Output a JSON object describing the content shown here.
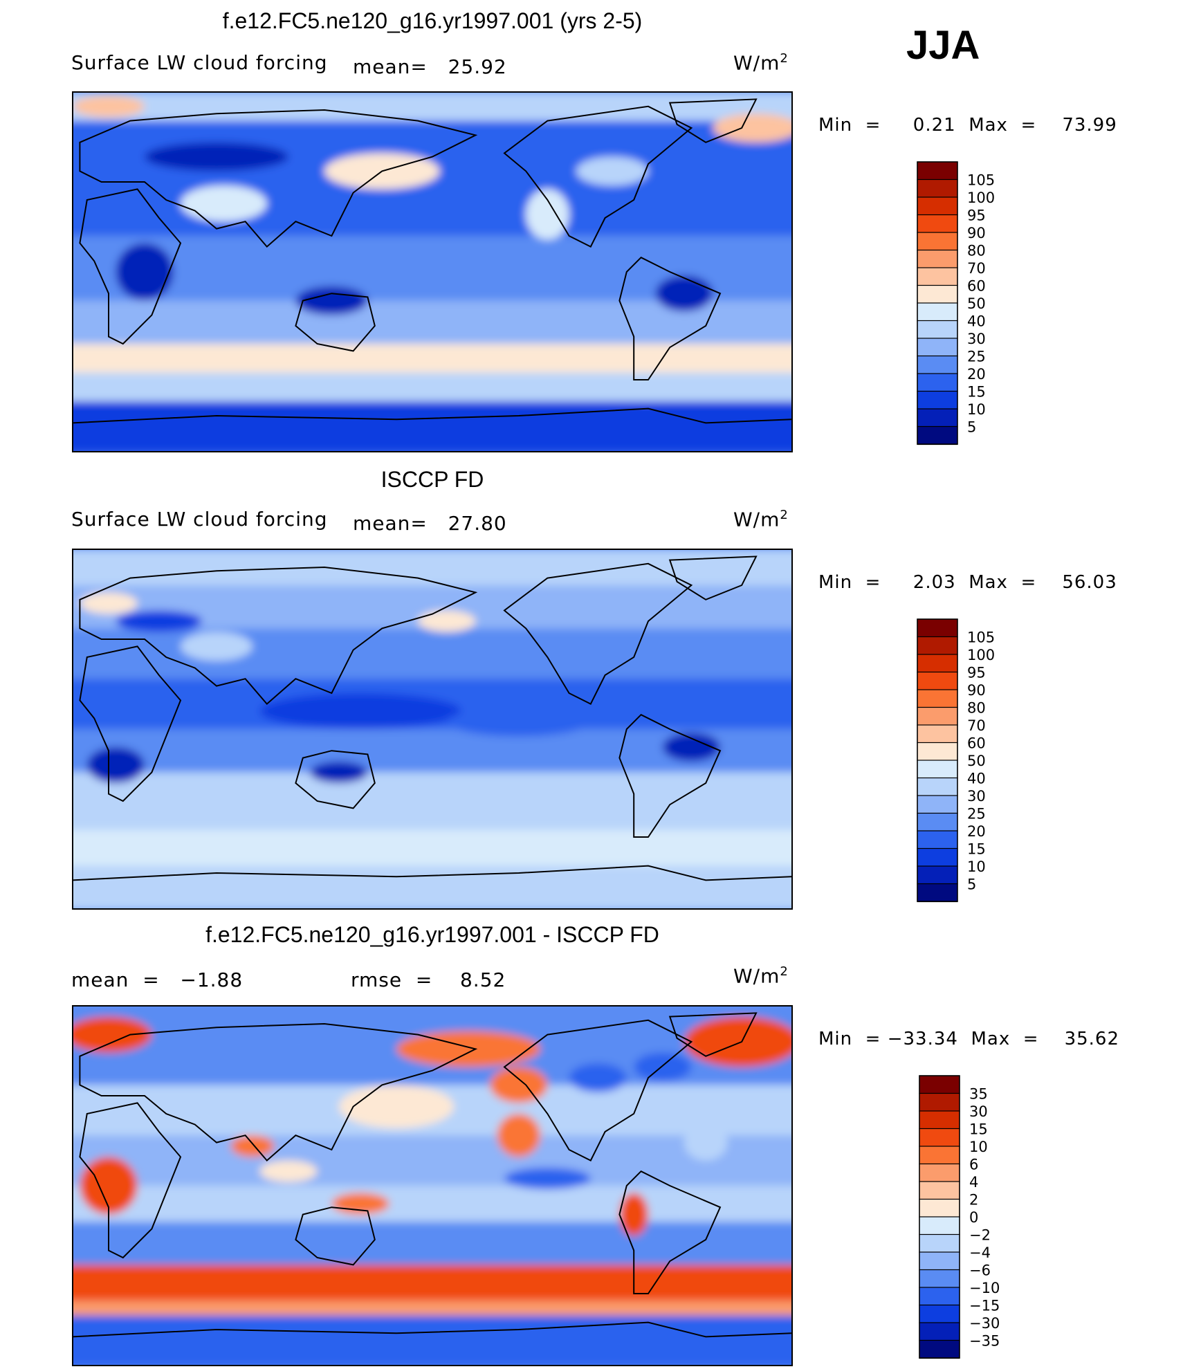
{
  "season": "JJA",
  "units_base": "W/m",
  "units_sup": "2",
  "panels": [
    {
      "title": "f.e12.FC5.ne120_g16.yr1997.001 (yrs 2-5)",
      "left_label": "Surface LW cloud forcing",
      "mid_label": "mean=   25.92",
      "min_max": "Min  =     0.21  Max  =    73.99",
      "levels": [
        "105",
        "100",
        "95",
        "90",
        "80",
        "70",
        "60",
        "50",
        "40",
        "30",
        "25",
        "20",
        "15",
        "10",
        "5"
      ],
      "colors": [
        "#7a0000",
        "#b01a00",
        "#d62e00",
        "#f04a10",
        "#fa7434",
        "#fb9c6c",
        "#fdc3a0",
        "#fde8d4",
        "#d8ebfb",
        "#b8d4fa",
        "#8fb4f8",
        "#5a8cf3",
        "#2c62ee",
        "#0d3ee0",
        "#0420b8",
        "#000a80"
      ],
      "field": "model"
    },
    {
      "title": "ISCCP FD",
      "left_label": "Surface LW cloud forcing",
      "mid_label": "mean=   27.80",
      "min_max": "Min  =     2.03  Max  =    56.03",
      "levels": [
        "105",
        "100",
        "95",
        "90",
        "80",
        "70",
        "60",
        "50",
        "40",
        "30",
        "25",
        "20",
        "15",
        "10",
        "5"
      ],
      "colors": [
        "#7a0000",
        "#b01a00",
        "#d62e00",
        "#f04a10",
        "#fa7434",
        "#fb9c6c",
        "#fdc3a0",
        "#fde8d4",
        "#d8ebfb",
        "#b8d4fa",
        "#8fb4f8",
        "#5a8cf3",
        "#2c62ee",
        "#0d3ee0",
        "#0420b8",
        "#000a80"
      ],
      "field": "obs"
    },
    {
      "title": "f.e12.FC5.ne120_g16.yr1997.001 - ISCCP FD",
      "left_label": "mean  =   −1.88",
      "mid_label": "rmse  =    8.52",
      "min_max": "Min  = −33.34  Max  =    35.62",
      "levels": [
        "35",
        "30",
        "15",
        "10",
        "6",
        "4",
        "2",
        "0",
        "−2",
        "−4",
        "−6",
        "−10",
        "−15",
        "−30",
        "−35"
      ],
      "colors": [
        "#7a0000",
        "#b01a00",
        "#d62e00",
        "#f04a10",
        "#fa7434",
        "#fb9c6c",
        "#fdc3a0",
        "#fde8d4",
        "#d8ebfb",
        "#b8d4fa",
        "#8fb4f8",
        "#5a8cf3",
        "#2c62ee",
        "#0d3ee0",
        "#0420b8",
        "#000a80"
      ],
      "field": "diff"
    }
  ]
}
